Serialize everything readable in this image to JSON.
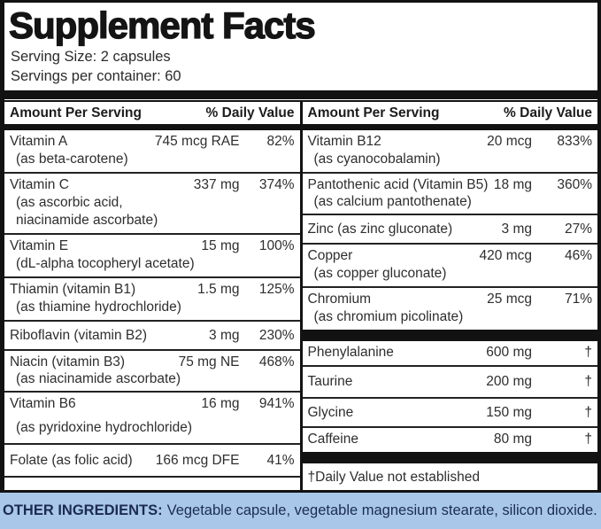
{
  "header": {
    "title": "Supplement Facts",
    "serving_size": "Serving Size: 2 capsules",
    "servings_per_container": "Servings per container: 60"
  },
  "columns": {
    "left": {
      "amount_header": "Amount Per Serving",
      "dv_header": "% Daily Value",
      "rows": [
        {
          "name": "Vitamin A",
          "sub": "(as beta-carotene)",
          "amount": "745 mcg RAE",
          "dv": "82%"
        },
        {
          "name": "Vitamin C",
          "sub": "(as ascorbic acid,\n niacinamide ascorbate)",
          "amount": "337 mg",
          "dv": "374%"
        },
        {
          "name": "Vitamin E",
          "sub": "(dL-alpha tocopheryl acetate)",
          "amount": "15 mg",
          "dv": "100%"
        },
        {
          "name": "Thiamin (vitamin B1)",
          "sub": "(as thiamine hydrochloride)",
          "amount": "1.5 mg",
          "dv": "125%"
        },
        {
          "name": "Riboflavin (vitamin B2)",
          "sub": "",
          "amount": "3 mg",
          "dv": "230%"
        },
        {
          "name": "Niacin (vitamin B3)",
          "sub": "(as niacinamide ascorbate)",
          "amount": "75 mg NE",
          "dv": "468%"
        },
        {
          "name": "Vitamin B6",
          "sub": "(as pyridoxine hydrochloride)",
          "amount": "16 mg",
          "dv": "941%"
        },
        {
          "name": "Folate (as folic acid)",
          "sub": "",
          "amount": "166 mcg DFE",
          "dv": "41%"
        }
      ]
    },
    "right": {
      "amount_header": "Amount Per Serving",
      "dv_header": "% Daily Value",
      "rows": [
        {
          "name": "Vitamin B12",
          "sub": "(as cyanocobalamin)",
          "amount": "20 mcg",
          "dv": "833%"
        },
        {
          "name": "Pantothenic acid (Vitamin B5)",
          "sub": "(as calcium pantothenate)",
          "amount": "18 mg",
          "dv": "360%"
        },
        {
          "name": "Zinc (as zinc gluconate)",
          "sub": "",
          "amount": "3 mg",
          "dv": "27%"
        },
        {
          "name": "Copper",
          "sub": "(as copper gluconate)",
          "amount": "420 mcg",
          "dv": "46%"
        },
        {
          "name": "Chromium",
          "sub": "(as chromium picolinate)",
          "amount": "25 mcg",
          "dv": "71%"
        }
      ],
      "rows2": [
        {
          "name": "Phenylalanine",
          "amount": "600 mg",
          "dv": "†"
        },
        {
          "name": "Taurine",
          "amount": "200 mg",
          "dv": "†"
        },
        {
          "name": "Glycine",
          "amount": "150 mg",
          "dv": "†"
        },
        {
          "name": "Caffeine",
          "amount": "80 mg",
          "dv": "†"
        }
      ],
      "footnote": "†Daily Value not established"
    }
  },
  "other_ingredients": {
    "label": "OTHER INGREDIENTS:",
    "text": "Vegetable capsule, vegetable magnesium stearate, silicon dioxide."
  },
  "colors": {
    "bar_black": "#121212",
    "body_text": "#2e2e2e",
    "footer_background": "#a9c8e9",
    "footer_text": "#1c2b52"
  }
}
